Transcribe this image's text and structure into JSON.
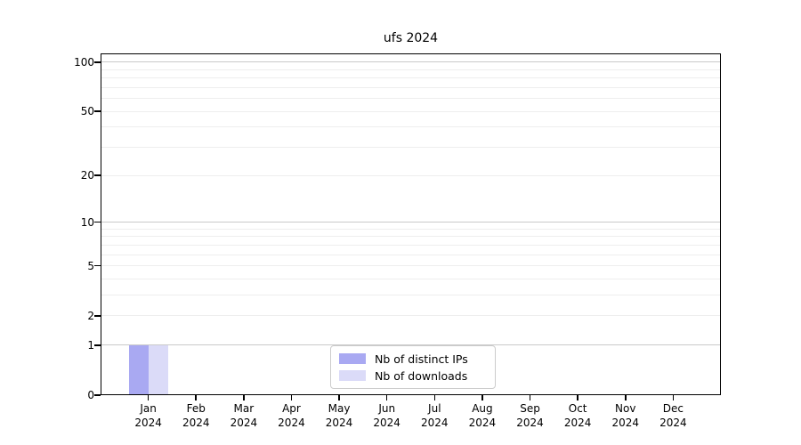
{
  "title": "ufs 2024",
  "chart_data": {
    "type": "bar",
    "title": "ufs 2024",
    "categories": [
      "Jan 2024",
      "Feb 2024",
      "Mar 2024",
      "Apr 2024",
      "May 2024",
      "Jun 2024",
      "Jul 2024",
      "Aug 2024",
      "Sep 2024",
      "Oct 2024",
      "Nov 2024",
      "Dec 2024"
    ],
    "x_months": [
      "Jan",
      "Feb",
      "Mar",
      "Apr",
      "May",
      "Jun",
      "Jul",
      "Aug",
      "Sep",
      "Oct",
      "Nov",
      "Dec"
    ],
    "x_year": "2024",
    "series": [
      {
        "name": "Nb of distinct IPs",
        "color": "#a9a9f2",
        "values": [
          1,
          0,
          0,
          0,
          0,
          0,
          0,
          0,
          0,
          0,
          0,
          0
        ]
      },
      {
        "name": "Nb of downloads",
        "color": "#dbdbf8",
        "values": [
          1,
          0,
          0,
          0,
          0,
          0,
          0,
          0,
          0,
          0,
          0,
          0
        ]
      }
    ],
    "y_ticks": [
      0,
      1,
      2,
      5,
      10,
      20,
      50,
      100
    ],
    "y_major_gridlines": [
      1,
      10,
      100
    ],
    "y_minor_gridlines": [
      2,
      3,
      4,
      5,
      6,
      7,
      8,
      9,
      20,
      30,
      40,
      50,
      60,
      70,
      80,
      90
    ],
    "y_scale": "log1p",
    "ylim": [
      0,
      113
    ],
    "xlabel": "",
    "ylabel": "",
    "grid": true,
    "legend_position": "lower center inside",
    "colors": {
      "major_grid": "#c9c9c9",
      "minor_grid": "#eeeeee",
      "spine": "#000000",
      "background": "#ffffff"
    }
  }
}
